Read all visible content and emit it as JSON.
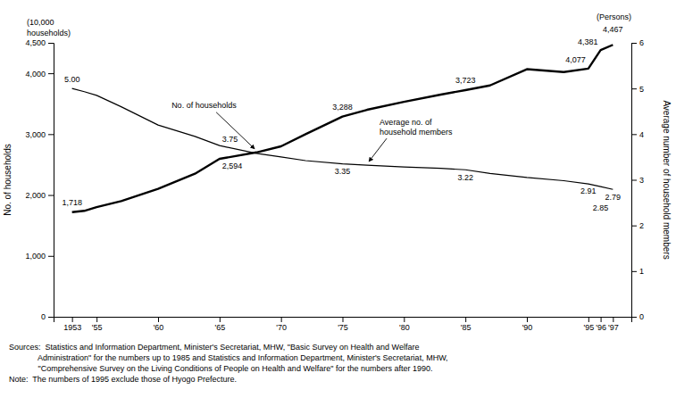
{
  "chart_data": {
    "type": "line",
    "x": [
      1953,
      1954,
      1955,
      1957,
      1960,
      1963,
      1965,
      1968,
      1970,
      1972,
      1975,
      1977,
      1980,
      1983,
      1985,
      1987,
      1990,
      1993,
      1995,
      1996,
      1997
    ],
    "xlim": [
      1951.5,
      1998.5
    ],
    "xticks": [
      1953,
      {
        "value": 1955,
        "label": "'55"
      },
      {
        "value": 1960,
        "label": "'60"
      },
      {
        "value": 1965,
        "label": "'65"
      },
      {
        "value": 1970,
        "label": "'70"
      },
      {
        "value": 1975,
        "label": "'75"
      },
      {
        "value": 1980,
        "label": "'80"
      },
      {
        "value": 1985,
        "label": "'85"
      },
      {
        "value": 1990,
        "label": "'90"
      },
      {
        "value": 1995,
        "label": "'95"
      },
      {
        "value": 1996,
        "label": "'96"
      },
      {
        "value": 1997,
        "label": "'97"
      }
    ],
    "ylim": [
      0,
      4500
    ],
    "yticks": [
      0,
      {
        "value": 1000,
        "label": "1,000"
      },
      {
        "value": 2000,
        "label": "2,000"
      },
      {
        "value": 3000,
        "label": "3,000"
      },
      {
        "value": 4000,
        "label": "4,000"
      },
      {
        "value": 4500,
        "label": "4,500"
      }
    ],
    "y2lim": [
      0,
      6
    ],
    "y2ticks": [
      0,
      1,
      2,
      3,
      4,
      5,
      6
    ],
    "ylabel": "No. of households",
    "y2label": "Average number of household members",
    "y_unit": [
      "(10,000",
      "households)"
    ],
    "y2_unit": "(Persons)",
    "series": [
      {
        "name": "No. of households",
        "color": "#000000",
        "values": [
          1718,
          1740,
          1800,
          1900,
          2100,
          2350,
          2594,
          2700,
          2800,
          3000,
          3288,
          3400,
          3530,
          3650,
          3723,
          3800,
          4067,
          4020,
          4077,
          4381,
          4467
        ],
        "value_labels": [
          "1,718",
          null,
          null,
          null,
          null,
          null,
          "2,594",
          null,
          null,
          null,
          "3,288",
          null,
          null,
          null,
          "3,723",
          null,
          null,
          null,
          "4,077",
          "4,381",
          "4,467"
        ]
      },
      {
        "name": "Average no. of\nhousehold members",
        "color": "#000000",
        "axis": "y2",
        "values": [
          5.0,
          4.93,
          4.85,
          4.6,
          4.2,
          3.95,
          3.75,
          3.58,
          3.5,
          3.42,
          3.35,
          3.32,
          3.28,
          3.25,
          3.22,
          3.14,
          3.05,
          2.98,
          2.91,
          2.85,
          2.79
        ],
        "value_labels": [
          "5.00",
          null,
          null,
          null,
          null,
          null,
          "3.75",
          null,
          null,
          null,
          "3.35",
          null,
          null,
          null,
          "3.22",
          null,
          null,
          null,
          "2.91",
          "2.85",
          "2.79"
        ]
      }
    ],
    "notes": [
      "Sources:  Statistics and Information Department, Minister's Secretariat, MHW, \"Basic Survey on Health and Welfare",
      "             Administration\" for the numbers up to 1985 and Statistics and Information Department, Minister's Secretariat, MHW,",
      "             \"Comprehensive Survey on the Living Conditions of People on Health and Welfare\" for the numbers after 1990.",
      "Note:  The numbers of 1995 exclude those of Hyogo Prefecture."
    ]
  }
}
